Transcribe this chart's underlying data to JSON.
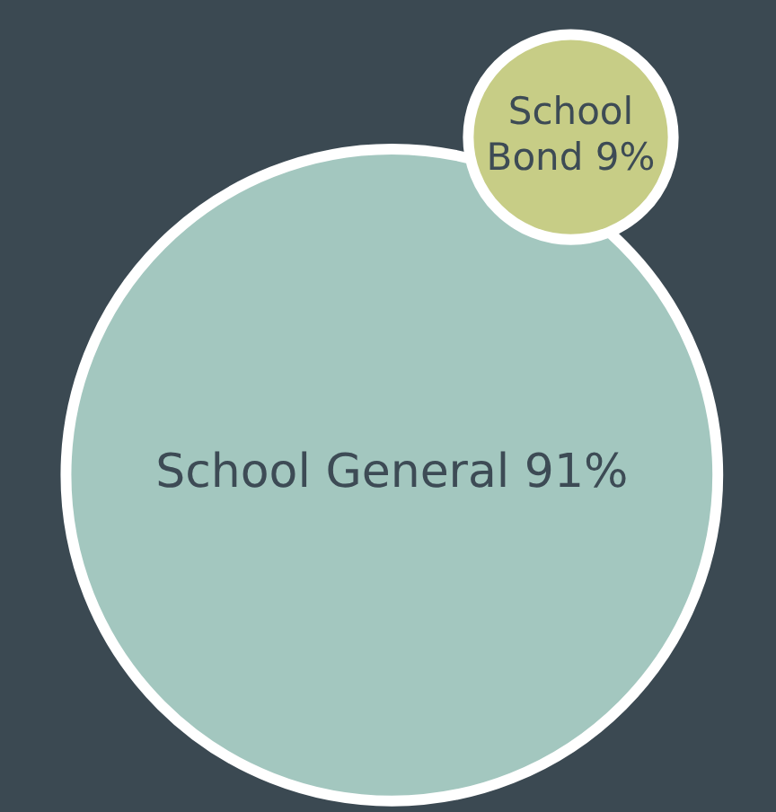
{
  "chart_data": {
    "type": "other",
    "categories": [
      "School General",
      "School Bond"
    ],
    "values": [
      91,
      9
    ],
    "value_labels": [
      "91%",
      "9%"
    ],
    "colors": [
      "#a3c7bf",
      "#c7cd86"
    ]
  }
}
